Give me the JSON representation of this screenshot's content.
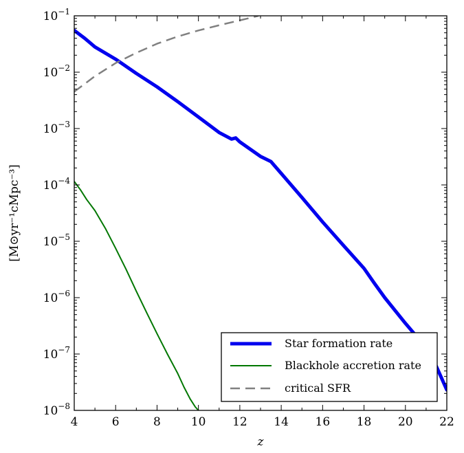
{
  "chart_data": {
    "type": "line",
    "title": "",
    "xlabel": "z",
    "ylabel": "[M⊙yr⁻¹cMpc⁻³]",
    "xlim": [
      4,
      22
    ],
    "ylim": [
      1e-08,
      0.1
    ],
    "yscale": "log",
    "grid": false,
    "legend_position": "bottom-right",
    "x_ticks": [
      4,
      6,
      8,
      10,
      12,
      14,
      16,
      18,
      20,
      22
    ],
    "x_tick_labels": [
      "4",
      "6",
      "8",
      "10",
      "12",
      "14",
      "16",
      "18",
      "20",
      "22"
    ],
    "y_ticks": [
      1e-08,
      1e-07,
      1e-06,
      1e-05,
      0.0001,
      0.001,
      0.01,
      0.1
    ],
    "y_tick_labels": [
      {
        "base": "10",
        "exp": "−8"
      },
      {
        "base": "10",
        "exp": "−7"
      },
      {
        "base": "10",
        "exp": "−6"
      },
      {
        "base": "10",
        "exp": "−5"
      },
      {
        "base": "10",
        "exp": "−4"
      },
      {
        "base": "10",
        "exp": "−3"
      },
      {
        "base": "10",
        "exp": "−2"
      },
      {
        "base": "10",
        "exp": "−1"
      }
    ],
    "series": [
      {
        "name": "Star formation rate",
        "color": "#0000ee",
        "style": "solid-thick",
        "x": [
          4.0,
          4.5,
          5.0,
          6.0,
          7.0,
          8.0,
          9.0,
          10.0,
          11.0,
          11.6,
          11.8,
          12.0,
          13.0,
          13.5,
          14.0,
          15.0,
          16.0,
          17.0,
          18.0,
          18.5,
          19.0,
          20.0,
          21.0,
          21.5,
          22.0
        ],
        "y": [
          0.055,
          0.04,
          0.028,
          0.017,
          0.0095,
          0.0055,
          0.003,
          0.0016,
          0.00085,
          0.00065,
          0.00068,
          0.00058,
          0.00032,
          0.00026,
          0.00016,
          6e-05,
          2.2e-05,
          8.5e-06,
          3.3e-06,
          1.8e-06,
          1e-06,
          3.5e-07,
          1.3e-07,
          6e-08,
          2.3e-08
        ]
      },
      {
        "name": "Blackhole accretion rate",
        "color": "#007700",
        "style": "solid",
        "x": [
          4.0,
          4.3,
          4.6,
          5.0,
          5.5,
          6.0,
          6.5,
          7.0,
          7.5,
          8.0,
          8.5,
          9.0,
          9.3,
          9.6,
          9.85,
          10.0
        ],
        "y": [
          0.000115,
          8.2e-05,
          5.5e-05,
          3.5e-05,
          1.7e-05,
          7.5e-06,
          3.2e-06,
          1.3e-06,
          5.4e-07,
          2.3e-07,
          1e-07,
          4.5e-08,
          2.6e-08,
          1.6e-08,
          1.15e-08,
          1e-08
        ]
      },
      {
        "name": "critical SFR",
        "color": "#808080",
        "style": "dashed",
        "x": [
          4.0,
          5.0,
          6.0,
          7.0,
          8.0,
          9.0,
          10.0,
          11.0,
          12.0,
          12.9
        ],
        "y": [
          0.0045,
          0.0085,
          0.0145,
          0.022,
          0.032,
          0.043,
          0.055,
          0.068,
          0.083,
          0.1
        ]
      }
    ]
  }
}
